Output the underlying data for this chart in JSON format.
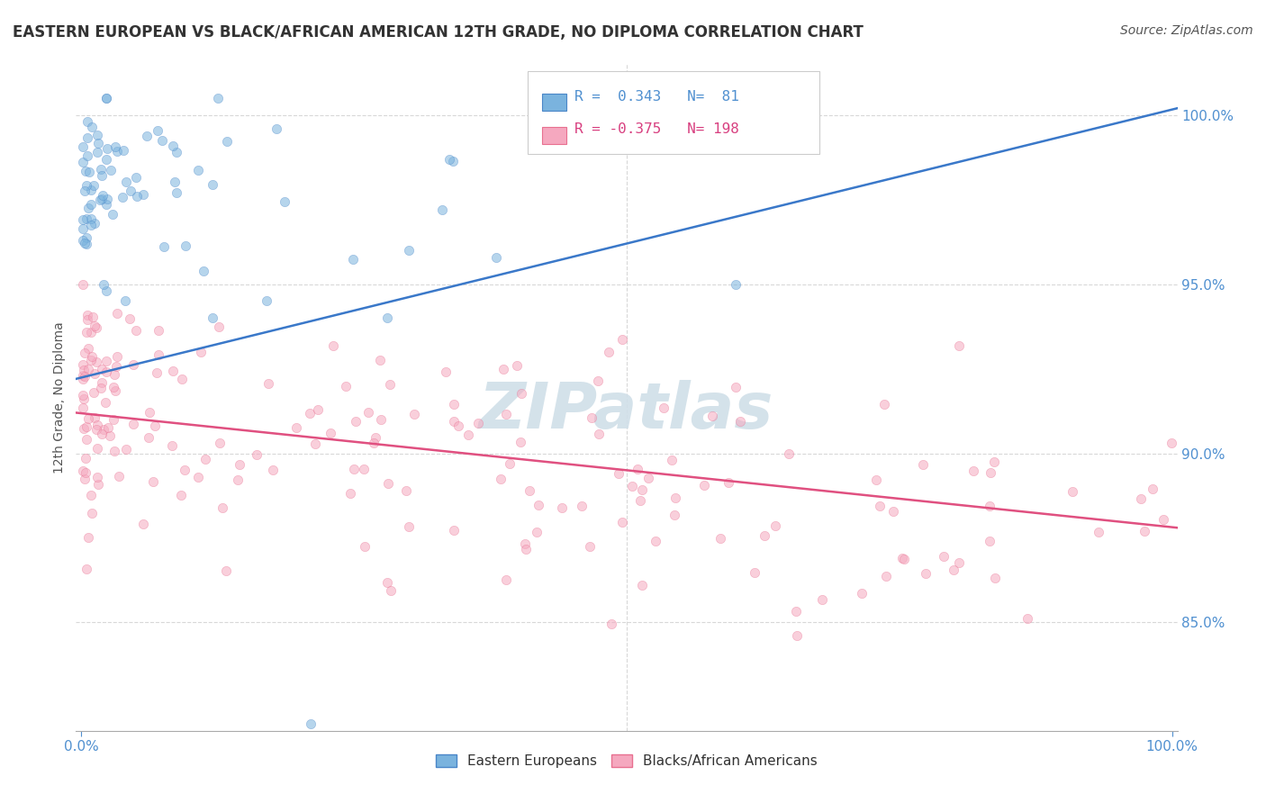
{
  "title": "EASTERN EUROPEAN VS BLACK/AFRICAN AMERICAN 12TH GRADE, NO DIPLOMA CORRELATION CHART",
  "source": "Source: ZipAtlas.com",
  "ylabel": "12th Grade, No Diploma",
  "ytick_values": [
    0.85,
    0.9,
    0.95,
    1.0
  ],
  "legend_entries": [
    {
      "label": "Eastern Europeans",
      "R": 0.343,
      "N": 81
    },
    {
      "label": "Blacks/African Americans",
      "R": -0.375,
      "N": 198
    }
  ],
  "blue_line_y_start": 0.922,
  "blue_line_y_end": 1.002,
  "pink_line_y_start": 0.912,
  "pink_line_y_end": 0.878,
  "scatter_size": 55,
  "scatter_alpha": 0.55,
  "blue_dot_color": "#7ab3de",
  "blue_dot_edge": "#4a86c8",
  "blue_line_color": "#3a78c9",
  "pink_dot_color": "#f5a8bf",
  "pink_dot_edge": "#e87090",
  "pink_line_color": "#e05080",
  "grid_color": "#d8d8d8",
  "bg_color": "#ffffff",
  "title_fontsize": 12,
  "source_fontsize": 10,
  "watermark": "ZIPatlas",
  "watermark_color": "#d0dfe8",
  "ymin": 0.818,
  "ymax": 1.015,
  "xmin": -0.005,
  "xmax": 1.005,
  "tick_color": "#5090d0"
}
